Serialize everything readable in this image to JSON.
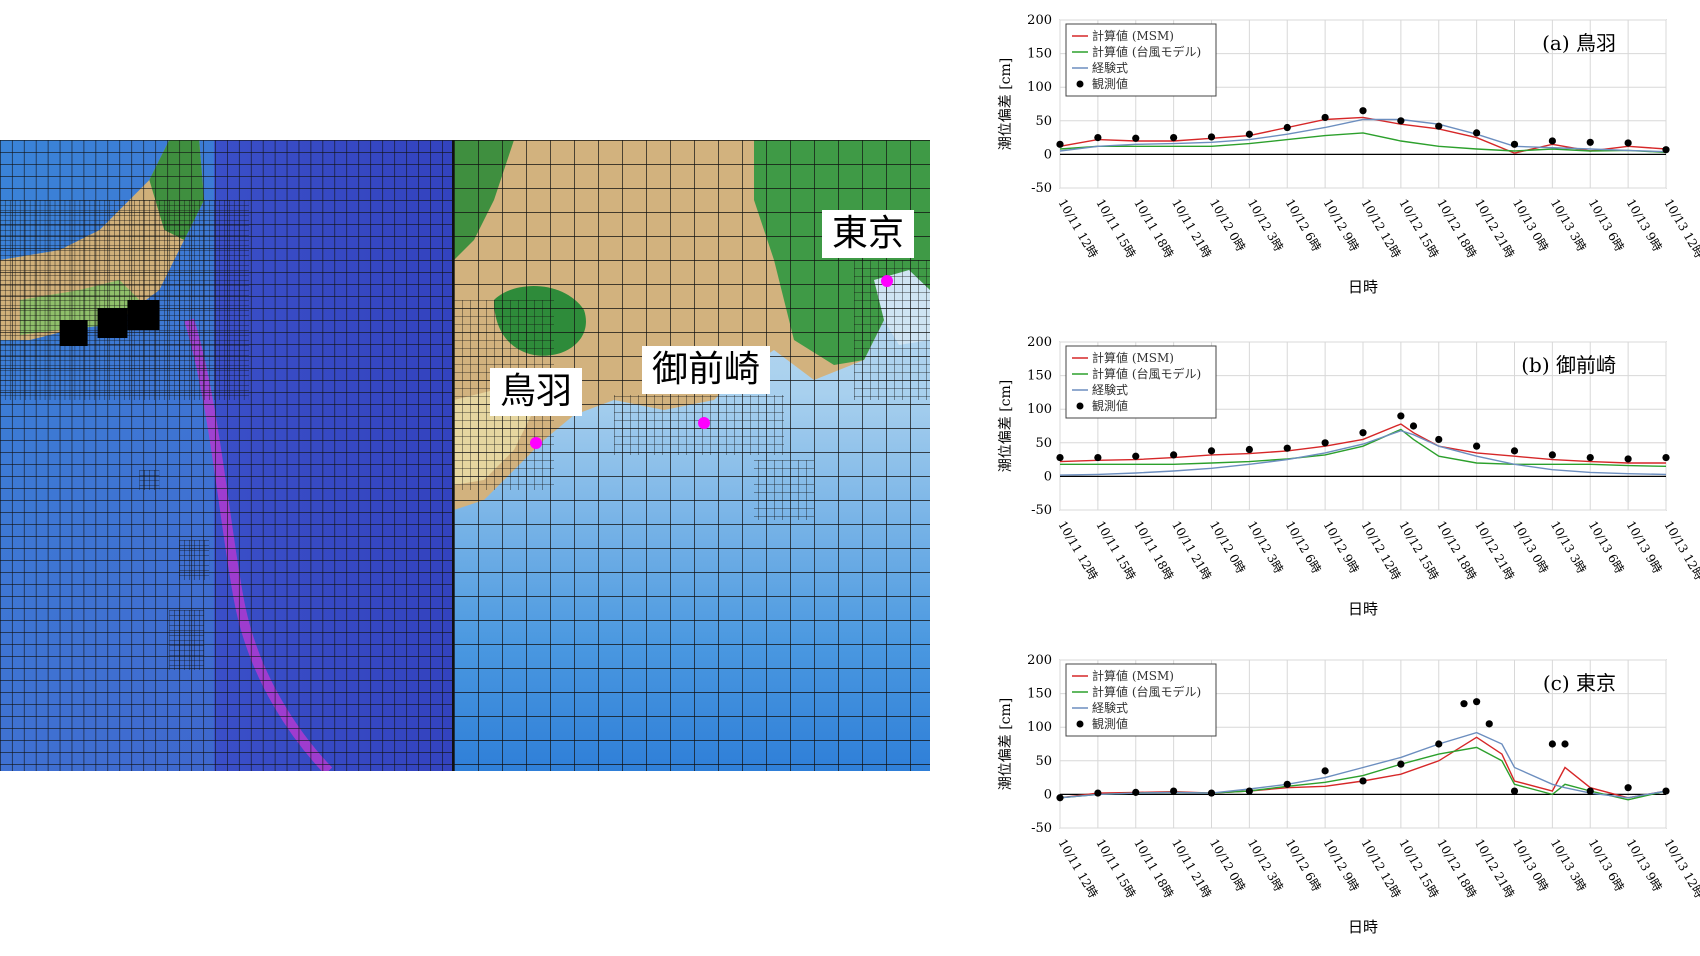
{
  "map": {
    "labels": [
      {
        "id": "toba",
        "text": "鳥羽"
      },
      {
        "id": "omaezaki",
        "text": "御前崎"
      },
      {
        "id": "tokyo",
        "text": "東京"
      }
    ]
  },
  "colors": {
    "msm": "#d62728",
    "typhoon_model": "#2ca02c",
    "empirical": "#6c8ebf",
    "observed": "#000000"
  },
  "chart_data": [
    {
      "type": "line",
      "panel_label": "(a)",
      "station": "鳥羽",
      "xlabel": "日時",
      "ylabel": "潮位偏差 [cm]",
      "ylim": [
        -50,
        200
      ],
      "yticks": [
        -50,
        0,
        50,
        100,
        150,
        200
      ],
      "x_tick_labels": [
        "10/11 12時",
        "10/11 15時",
        "10/11 18時",
        "10/11 21時",
        "10/12 0時",
        "10/12 3時",
        "10/12 6時",
        "10/12 9時",
        "10/12 12時",
        "10/12 15時",
        "10/12 18時",
        "10/12 21時",
        "10/13 0時",
        "10/13 3時",
        "10/13 6時",
        "10/13 9時",
        "10/13 12時"
      ],
      "x_unit": "hours from 10/11 12時",
      "grid": true,
      "legend": {
        "position": "top-left",
        "entries": [
          "計算値 (MSM)",
          "計算値 (台風モデル)",
          "経験式",
          "観測値"
        ]
      },
      "series": [
        {
          "name": "計算値 (MSM)",
          "style": "line",
          "color": "#d62728",
          "x": [
            0,
            3,
            6,
            9,
            12,
            15,
            18,
            21,
            24,
            27,
            30,
            33,
            36,
            39,
            42,
            45,
            48
          ],
          "y": [
            12,
            22,
            20,
            20,
            24,
            28,
            40,
            52,
            55,
            45,
            38,
            25,
            2,
            15,
            5,
            12,
            8
          ]
        },
        {
          "name": "計算値 (台風モデル)",
          "style": "line",
          "color": "#2ca02c",
          "x": [
            0,
            3,
            6,
            9,
            12,
            15,
            18,
            21,
            24,
            27,
            30,
            33,
            36,
            39,
            42,
            45,
            48
          ],
          "y": [
            8,
            12,
            12,
            12,
            12,
            16,
            22,
            28,
            32,
            20,
            12,
            8,
            5,
            8,
            5,
            6,
            3
          ]
        },
        {
          "name": "経験式",
          "style": "line",
          "color": "#6c8ebf",
          "x": [
            0,
            3,
            6,
            9,
            12,
            15,
            18,
            21,
            24,
            27,
            30,
            33,
            36,
            39,
            42,
            45,
            48
          ],
          "y": [
            5,
            12,
            15,
            16,
            18,
            22,
            30,
            40,
            52,
            52,
            45,
            30,
            12,
            10,
            8,
            6,
            4
          ]
        },
        {
          "name": "観測値",
          "style": "marker",
          "color": "#000000",
          "x": [
            0,
            3,
            6,
            9,
            12,
            15,
            18,
            21,
            24,
            27,
            30,
            33,
            36,
            39,
            42,
            45,
            48
          ],
          "y": [
            15,
            25,
            24,
            25,
            26,
            30,
            40,
            55,
            65,
            50,
            42,
            32,
            15,
            20,
            18,
            17,
            7
          ]
        }
      ]
    },
    {
      "type": "line",
      "panel_label": "(b)",
      "station": "御前崎",
      "xlabel": "日時",
      "ylabel": "潮位偏差 [cm]",
      "ylim": [
        -50,
        200
      ],
      "yticks": [
        -50,
        0,
        50,
        100,
        150,
        200
      ],
      "x_tick_labels": [
        "10/11 12時",
        "10/11 15時",
        "10/11 18時",
        "10/11 21時",
        "10/12 0時",
        "10/12 3時",
        "10/12 6時",
        "10/12 9時",
        "10/12 12時",
        "10/12 15時",
        "10/12 18時",
        "10/12 21時",
        "10/13 0時",
        "10/13 3時",
        "10/13 6時",
        "10/13 9時",
        "10/13 12時"
      ],
      "x_unit": "hours from 10/11 12時",
      "grid": true,
      "legend": {
        "position": "top-left",
        "entries": [
          "計算値 (MSM)",
          "計算値 (台風モデル)",
          "経験式",
          "観測値"
        ]
      },
      "series": [
        {
          "name": "計算値 (MSM)",
          "style": "line",
          "color": "#d62728",
          "x": [
            0,
            3,
            6,
            9,
            12,
            15,
            18,
            21,
            24,
            27,
            28,
            30,
            33,
            36,
            39,
            42,
            45,
            48
          ],
          "y": [
            22,
            24,
            25,
            28,
            32,
            34,
            38,
            45,
            55,
            78,
            65,
            45,
            35,
            30,
            25,
            22,
            20,
            20
          ]
        },
        {
          "name": "計算値 (台風モデル)",
          "style": "line",
          "color": "#2ca02c",
          "x": [
            0,
            3,
            6,
            9,
            12,
            15,
            18,
            21,
            24,
            27,
            28,
            30,
            33,
            36,
            39,
            42,
            45,
            48
          ],
          "y": [
            18,
            18,
            18,
            18,
            20,
            22,
            26,
            32,
            45,
            70,
            55,
            30,
            20,
            18,
            18,
            18,
            16,
            15
          ]
        },
        {
          "name": "経験式",
          "style": "line",
          "color": "#6c8ebf",
          "x": [
            0,
            3,
            6,
            9,
            12,
            15,
            18,
            21,
            24,
            27,
            28,
            30,
            33,
            36,
            39,
            42,
            45,
            48
          ],
          "y": [
            2,
            3,
            5,
            8,
            12,
            18,
            25,
            35,
            48,
            68,
            62,
            45,
            30,
            18,
            10,
            6,
            4,
            3
          ]
        },
        {
          "name": "観測値",
          "style": "marker",
          "color": "#000000",
          "x": [
            0,
            3,
            6,
            9,
            12,
            15,
            18,
            21,
            24,
            27,
            28,
            30,
            33,
            36,
            39,
            42,
            45,
            48
          ],
          "y": [
            28,
            28,
            30,
            32,
            38,
            40,
            42,
            50,
            65,
            90,
            75,
            55,
            45,
            38,
            32,
            28,
            26,
            28
          ]
        }
      ]
    },
    {
      "type": "line",
      "panel_label": "(c)",
      "station": "東京",
      "xlabel": "日時",
      "ylabel": "潮位偏差 [cm]",
      "ylim": [
        -50,
        200
      ],
      "yticks": [
        -50,
        0,
        50,
        100,
        150,
        200
      ],
      "x_tick_labels": [
        "10/11 12時",
        "10/11 15時",
        "10/11 18時",
        "10/11 21時",
        "10/12 0時",
        "10/12 3時",
        "10/12 6時",
        "10/12 9時",
        "10/12 12時",
        "10/12 15時",
        "10/12 18時",
        "10/12 21時",
        "10/13 0時",
        "10/13 3時",
        "10/13 6時",
        "10/13 9時",
        "10/13 12時"
      ],
      "x_unit": "hours from 10/11 12時",
      "grid": true,
      "legend": {
        "position": "top-left",
        "entries": [
          "計算値 (MSM)",
          "計算値 (台風モデル)",
          "経験式",
          "観測値"
        ]
      },
      "series": [
        {
          "name": "計算値 (MSM)",
          "style": "line",
          "color": "#d62728",
          "x": [
            0,
            3,
            6,
            9,
            12,
            15,
            18,
            21,
            24,
            27,
            30,
            33,
            35,
            36,
            39,
            40,
            42,
            45,
            48
          ],
          "y": [
            -5,
            2,
            3,
            4,
            2,
            5,
            10,
            12,
            20,
            30,
            50,
            85,
            60,
            20,
            5,
            40,
            10,
            -5,
            5
          ]
        },
        {
          "name": "計算値 (台風モデル)",
          "style": "line",
          "color": "#2ca02c",
          "x": [
            0,
            3,
            6,
            9,
            12,
            15,
            18,
            21,
            24,
            27,
            30,
            33,
            35,
            36,
            39,
            40,
            42,
            45,
            48
          ],
          "y": [
            -5,
            0,
            2,
            3,
            2,
            5,
            12,
            18,
            28,
            45,
            60,
            70,
            50,
            15,
            0,
            15,
            5,
            -8,
            5
          ]
        },
        {
          "name": "経験式",
          "style": "line",
          "color": "#6c8ebf",
          "x": [
            0,
            3,
            6,
            9,
            12,
            15,
            18,
            21,
            24,
            27,
            30,
            33,
            35,
            36,
            39,
            40,
            42,
            45,
            48
          ],
          "y": [
            -5,
            0,
            2,
            3,
            2,
            8,
            15,
            25,
            40,
            55,
            75,
            92,
            75,
            40,
            15,
            10,
            2,
            -5,
            5
          ]
        },
        {
          "name": "観測値",
          "style": "marker",
          "color": "#000000",
          "x": [
            0,
            3,
            6,
            9,
            12,
            15,
            18,
            21,
            24,
            27,
            30,
            32,
            33,
            34,
            36,
            39,
            40,
            42,
            45,
            48
          ],
          "y": [
            -5,
            2,
            3,
            5,
            2,
            5,
            15,
            35,
            20,
            45,
            75,
            135,
            138,
            105,
            5,
            75,
            75,
            5,
            10,
            5
          ]
        }
      ]
    }
  ]
}
